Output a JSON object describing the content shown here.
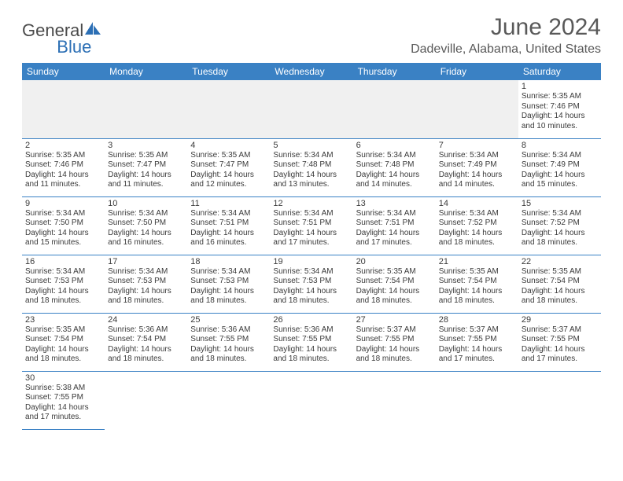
{
  "brand": {
    "part1": "General",
    "part2": "Blue"
  },
  "title": "June 2024",
  "location": "Dadeville, Alabama, United States",
  "style": {
    "header_bg": "#3a81c4",
    "header_fg": "#ffffff",
    "grid_line": "#3a81c4",
    "empty_bg": "#f0f0f0",
    "text_color": "#3a3a3a",
    "title_color": "#595959",
    "page_bg": "#ffffff",
    "title_fontsize": 30,
    "location_fontsize": 16,
    "dayhead_fontsize": 12,
    "daynum_fontsize": 11,
    "info_fontsize": 10
  },
  "day_headers": [
    "Sunday",
    "Monday",
    "Tuesday",
    "Wednesday",
    "Thursday",
    "Friday",
    "Saturday"
  ],
  "weeks": [
    [
      null,
      null,
      null,
      null,
      null,
      null,
      {
        "n": "1",
        "sr": "Sunrise: 5:35 AM",
        "ss": "Sunset: 7:46 PM",
        "d1": "Daylight: 14 hours",
        "d2": "and 10 minutes."
      }
    ],
    [
      {
        "n": "2",
        "sr": "Sunrise: 5:35 AM",
        "ss": "Sunset: 7:46 PM",
        "d1": "Daylight: 14 hours",
        "d2": "and 11 minutes."
      },
      {
        "n": "3",
        "sr": "Sunrise: 5:35 AM",
        "ss": "Sunset: 7:47 PM",
        "d1": "Daylight: 14 hours",
        "d2": "and 11 minutes."
      },
      {
        "n": "4",
        "sr": "Sunrise: 5:35 AM",
        "ss": "Sunset: 7:47 PM",
        "d1": "Daylight: 14 hours",
        "d2": "and 12 minutes."
      },
      {
        "n": "5",
        "sr": "Sunrise: 5:34 AM",
        "ss": "Sunset: 7:48 PM",
        "d1": "Daylight: 14 hours",
        "d2": "and 13 minutes."
      },
      {
        "n": "6",
        "sr": "Sunrise: 5:34 AM",
        "ss": "Sunset: 7:48 PM",
        "d1": "Daylight: 14 hours",
        "d2": "and 14 minutes."
      },
      {
        "n": "7",
        "sr": "Sunrise: 5:34 AM",
        "ss": "Sunset: 7:49 PM",
        "d1": "Daylight: 14 hours",
        "d2": "and 14 minutes."
      },
      {
        "n": "8",
        "sr": "Sunrise: 5:34 AM",
        "ss": "Sunset: 7:49 PM",
        "d1": "Daylight: 14 hours",
        "d2": "and 15 minutes."
      }
    ],
    [
      {
        "n": "9",
        "sr": "Sunrise: 5:34 AM",
        "ss": "Sunset: 7:50 PM",
        "d1": "Daylight: 14 hours",
        "d2": "and 15 minutes."
      },
      {
        "n": "10",
        "sr": "Sunrise: 5:34 AM",
        "ss": "Sunset: 7:50 PM",
        "d1": "Daylight: 14 hours",
        "d2": "and 16 minutes."
      },
      {
        "n": "11",
        "sr": "Sunrise: 5:34 AM",
        "ss": "Sunset: 7:51 PM",
        "d1": "Daylight: 14 hours",
        "d2": "and 16 minutes."
      },
      {
        "n": "12",
        "sr": "Sunrise: 5:34 AM",
        "ss": "Sunset: 7:51 PM",
        "d1": "Daylight: 14 hours",
        "d2": "and 17 minutes."
      },
      {
        "n": "13",
        "sr": "Sunrise: 5:34 AM",
        "ss": "Sunset: 7:51 PM",
        "d1": "Daylight: 14 hours",
        "d2": "and 17 minutes."
      },
      {
        "n": "14",
        "sr": "Sunrise: 5:34 AM",
        "ss": "Sunset: 7:52 PM",
        "d1": "Daylight: 14 hours",
        "d2": "and 18 minutes."
      },
      {
        "n": "15",
        "sr": "Sunrise: 5:34 AM",
        "ss": "Sunset: 7:52 PM",
        "d1": "Daylight: 14 hours",
        "d2": "and 18 minutes."
      }
    ],
    [
      {
        "n": "16",
        "sr": "Sunrise: 5:34 AM",
        "ss": "Sunset: 7:53 PM",
        "d1": "Daylight: 14 hours",
        "d2": "and 18 minutes."
      },
      {
        "n": "17",
        "sr": "Sunrise: 5:34 AM",
        "ss": "Sunset: 7:53 PM",
        "d1": "Daylight: 14 hours",
        "d2": "and 18 minutes."
      },
      {
        "n": "18",
        "sr": "Sunrise: 5:34 AM",
        "ss": "Sunset: 7:53 PM",
        "d1": "Daylight: 14 hours",
        "d2": "and 18 minutes."
      },
      {
        "n": "19",
        "sr": "Sunrise: 5:34 AM",
        "ss": "Sunset: 7:53 PM",
        "d1": "Daylight: 14 hours",
        "d2": "and 18 minutes."
      },
      {
        "n": "20",
        "sr": "Sunrise: 5:35 AM",
        "ss": "Sunset: 7:54 PM",
        "d1": "Daylight: 14 hours",
        "d2": "and 18 minutes."
      },
      {
        "n": "21",
        "sr": "Sunrise: 5:35 AM",
        "ss": "Sunset: 7:54 PM",
        "d1": "Daylight: 14 hours",
        "d2": "and 18 minutes."
      },
      {
        "n": "22",
        "sr": "Sunrise: 5:35 AM",
        "ss": "Sunset: 7:54 PM",
        "d1": "Daylight: 14 hours",
        "d2": "and 18 minutes."
      }
    ],
    [
      {
        "n": "23",
        "sr": "Sunrise: 5:35 AM",
        "ss": "Sunset: 7:54 PM",
        "d1": "Daylight: 14 hours",
        "d2": "and 18 minutes."
      },
      {
        "n": "24",
        "sr": "Sunrise: 5:36 AM",
        "ss": "Sunset: 7:54 PM",
        "d1": "Daylight: 14 hours",
        "d2": "and 18 minutes."
      },
      {
        "n": "25",
        "sr": "Sunrise: 5:36 AM",
        "ss": "Sunset: 7:55 PM",
        "d1": "Daylight: 14 hours",
        "d2": "and 18 minutes."
      },
      {
        "n": "26",
        "sr": "Sunrise: 5:36 AM",
        "ss": "Sunset: 7:55 PM",
        "d1": "Daylight: 14 hours",
        "d2": "and 18 minutes."
      },
      {
        "n": "27",
        "sr": "Sunrise: 5:37 AM",
        "ss": "Sunset: 7:55 PM",
        "d1": "Daylight: 14 hours",
        "d2": "and 18 minutes."
      },
      {
        "n": "28",
        "sr": "Sunrise: 5:37 AM",
        "ss": "Sunset: 7:55 PM",
        "d1": "Daylight: 14 hours",
        "d2": "and 17 minutes."
      },
      {
        "n": "29",
        "sr": "Sunrise: 5:37 AM",
        "ss": "Sunset: 7:55 PM",
        "d1": "Daylight: 14 hours",
        "d2": "and 17 minutes."
      }
    ],
    [
      {
        "n": "30",
        "sr": "Sunrise: 5:38 AM",
        "ss": "Sunset: 7:55 PM",
        "d1": "Daylight: 14 hours",
        "d2": "and 17 minutes."
      },
      null,
      null,
      null,
      null,
      null,
      null
    ]
  ]
}
